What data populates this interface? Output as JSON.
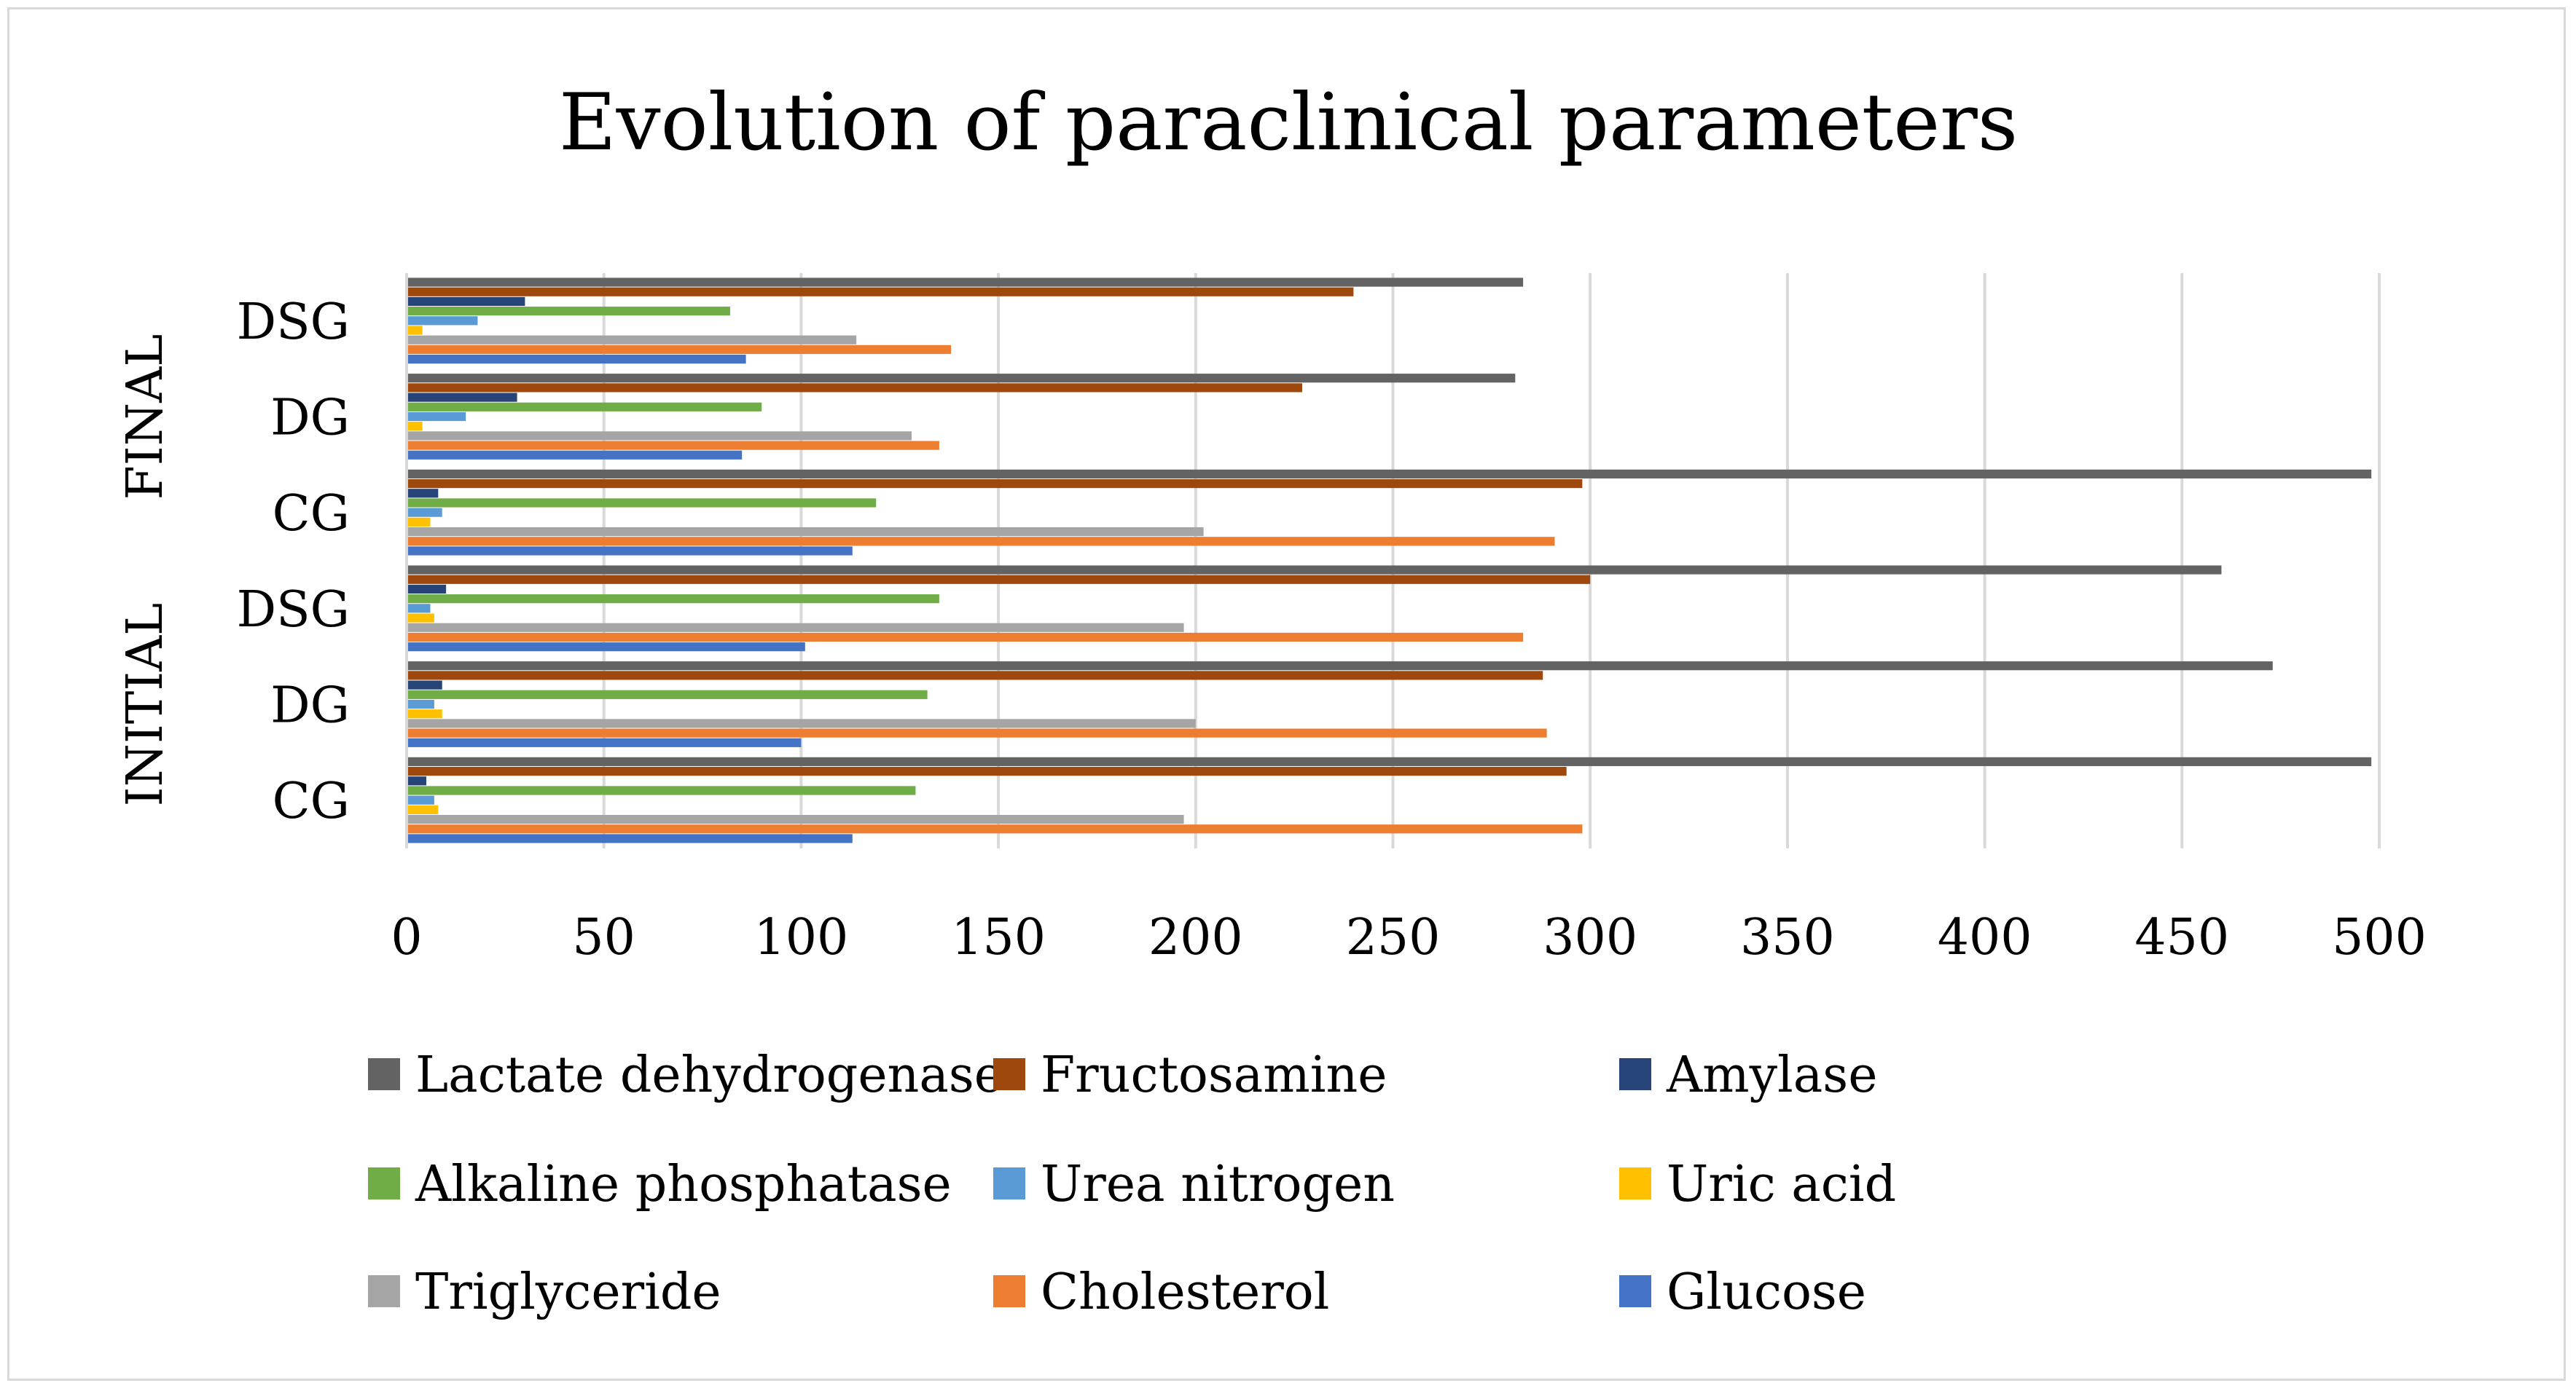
{
  "chart_data": {
    "type": "bar",
    "orientation": "horizontal",
    "title": "Evolution of paraclinical parameters",
    "xlim": [
      0,
      500
    ],
    "x_ticks": [
      "0",
      "50",
      "100",
      "150",
      "200",
      "250",
      "300",
      "350",
      "400",
      "450",
      "500"
    ],
    "x_tick_values": [
      0,
      50,
      100,
      150,
      200,
      250,
      300,
      350,
      400,
      450,
      500
    ],
    "grid": "vertical",
    "legend_position": "bottom",
    "groups": [
      {
        "label": "INITIAL",
        "categories": [
          "CG",
          "DG",
          "DSG"
        ]
      },
      {
        "label": "FINAL",
        "categories": [
          "CG",
          "DG",
          "DSG"
        ]
      }
    ],
    "categories": [
      "INITIAL CG",
      "INITIAL DG",
      "INITIAL DSG",
      "FINAL CG",
      "FINAL DG",
      "FINAL DSG"
    ],
    "series": [
      {
        "name": "Glucose",
        "color": "#4472C4",
        "values": [
          113,
          100,
          101,
          113,
          85,
          86
        ]
      },
      {
        "name": "Cholesterol",
        "color": "#ED7D31",
        "values": [
          298,
          289,
          283,
          291,
          135,
          138
        ]
      },
      {
        "name": "Triglyceride",
        "color": "#A5A5A5",
        "values": [
          197,
          200,
          197,
          202,
          128,
          114
        ]
      },
      {
        "name": "Uric acid",
        "color": "#FFC000",
        "values": [
          8,
          9,
          7,
          6,
          4,
          4
        ]
      },
      {
        "name": "Urea nitrogen",
        "color": "#5B9BD5",
        "values": [
          7,
          7,
          6,
          9,
          15,
          18
        ]
      },
      {
        "name": "Alkaline phosphatase",
        "color": "#70AD47",
        "values": [
          129,
          132,
          135,
          119,
          90,
          82
        ]
      },
      {
        "name": "Amylase",
        "color": "#264478",
        "values": [
          5,
          9,
          10,
          8,
          28,
          30
        ]
      },
      {
        "name": "Fructosamine",
        "color": "#9E480E",
        "values": [
          294,
          288,
          300,
          298,
          227,
          240
        ]
      },
      {
        "name": "Lactate dehydrogenase",
        "color": "#636363",
        "values": [
          498,
          473,
          460,
          498,
          281,
          283
        ]
      }
    ],
    "legend_order": [
      "Lactate dehydrogenase",
      "Fructosamine",
      "Amylase",
      "Alkaline phosphatase",
      "Urea nitrogen",
      "Uric acid",
      "Triglyceride",
      "Cholesterol",
      "Glucose"
    ]
  }
}
